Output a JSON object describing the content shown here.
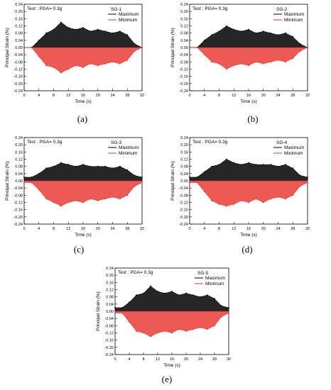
{
  "chart_data": [
    {
      "type": "line",
      "panel_label": "(a)",
      "annotation": "Test : PGA= 0.3g",
      "gauge": "SG-1",
      "xlabel": "Time (s)",
      "ylabel": "Principal Strain (%)",
      "xlim": [
        0,
        32
      ],
      "ylim": [
        -0.24,
        0.24
      ],
      "xticks": [
        "0",
        "4",
        "8",
        "12",
        "16",
        "20",
        "24",
        "28",
        "32"
      ],
      "yticks": [
        "0.24",
        "0.20",
        "0.16",
        "0.12",
        "0.08",
        "0.04",
        "0.00",
        "-0.04",
        "-0.08",
        "-0.12",
        "-0.16",
        "-0.20",
        "-0.24"
      ],
      "legend": [
        "Maximum",
        "Minimum"
      ],
      "series": [
        {
          "name": "Maximum",
          "color": "#000000",
          "x": [
            0,
            2,
            4,
            6,
            8,
            10,
            12,
            14,
            16,
            18,
            20,
            22,
            24,
            26,
            28,
            30,
            32
          ],
          "y": [
            0.0,
            0.0,
            0.04,
            0.08,
            0.1,
            0.14,
            0.11,
            0.1,
            0.11,
            0.09,
            0.1,
            0.09,
            0.08,
            0.09,
            0.07,
            0.02,
            0.0
          ]
        },
        {
          "name": "Minimum",
          "color": "#e8312a",
          "x": [
            0,
            2,
            4,
            6,
            8,
            10,
            12,
            14,
            16,
            18,
            20,
            22,
            24,
            26,
            28,
            30,
            32
          ],
          "y": [
            0.0,
            0.0,
            -0.05,
            -0.1,
            -0.11,
            -0.14,
            -0.12,
            -0.1,
            -0.11,
            -0.09,
            -0.1,
            -0.09,
            -0.08,
            -0.09,
            -0.07,
            -0.02,
            0.0
          ]
        }
      ]
    },
    {
      "type": "line",
      "panel_label": "(b)",
      "annotation": "Test : PGA= 0.3g",
      "gauge": "SG-2",
      "xlabel": "Time (s)",
      "ylabel": "Principal Strain (%)",
      "xlim": [
        0,
        32
      ],
      "ylim": [
        -0.24,
        0.24
      ],
      "xticks": [
        "0",
        "4",
        "8",
        "12",
        "16",
        "20",
        "24",
        "28",
        "32"
      ],
      "yticks": [
        "0.24",
        "0.20",
        "0.16",
        "0.12",
        "0.08",
        "0.04",
        "0.00",
        "-0.04",
        "-0.08",
        "-0.12",
        "-0.16",
        "-0.20",
        "-0.24"
      ],
      "legend": [
        "Maximum",
        "Minimum"
      ],
      "series": [
        {
          "name": "Maximum",
          "color": "#000000",
          "x": [
            0,
            2,
            4,
            6,
            8,
            10,
            12,
            14,
            16,
            18,
            20,
            22,
            24,
            26,
            28,
            30,
            32
          ],
          "y": [
            0.0,
            0.0,
            0.04,
            0.07,
            0.09,
            0.12,
            0.1,
            0.09,
            0.1,
            0.08,
            0.09,
            0.08,
            0.07,
            0.08,
            0.06,
            0.02,
            0.0
          ]
        },
        {
          "name": "Minimum",
          "color": "#e8312a",
          "x": [
            0,
            2,
            4,
            6,
            8,
            10,
            12,
            14,
            16,
            18,
            20,
            22,
            24,
            26,
            28,
            30,
            32
          ],
          "y": [
            0.0,
            0.0,
            -0.04,
            -0.08,
            -0.09,
            -0.12,
            -0.1,
            -0.09,
            -0.1,
            -0.08,
            -0.09,
            -0.08,
            -0.07,
            -0.08,
            -0.06,
            -0.02,
            0.0
          ]
        }
      ]
    },
    {
      "type": "line",
      "panel_label": "(c)",
      "annotation": "Test : PGA= 0.3g",
      "gauge": "SG-3",
      "xlabel": "Time (s)",
      "ylabel": "Principal Strain (%)",
      "xlim": [
        0,
        32
      ],
      "ylim": [
        -0.24,
        0.24
      ],
      "xticks": [
        "0",
        "4",
        "8",
        "12",
        "16",
        "20",
        "24",
        "28",
        "32"
      ],
      "yticks": [
        "0.24",
        "0.20",
        "0.16",
        "0.12",
        "0.08",
        "0.04",
        "0.00",
        "-0.04",
        "-0.08",
        "-0.12",
        "-0.16",
        "-0.20",
        "-0.24"
      ],
      "legend": [
        "Maximum",
        "Minimum"
      ],
      "series": [
        {
          "name": "Maximum",
          "color": "#000000",
          "x": [
            0,
            2,
            4,
            6,
            8,
            10,
            12,
            14,
            16,
            18,
            20,
            22,
            24,
            26,
            28,
            30,
            32
          ],
          "y": [
            0.02,
            0.02,
            0.04,
            0.07,
            0.08,
            0.1,
            0.09,
            0.08,
            0.09,
            0.08,
            0.08,
            0.08,
            0.07,
            0.08,
            0.06,
            0.03,
            0.02
          ]
        },
        {
          "name": "Minimum",
          "color": "#e8312a",
          "x": [
            0,
            2,
            4,
            6,
            8,
            10,
            12,
            14,
            16,
            18,
            20,
            22,
            24,
            26,
            28,
            30,
            32
          ],
          "y": [
            -0.01,
            -0.01,
            -0.05,
            -0.1,
            -0.12,
            -0.14,
            -0.12,
            -0.11,
            -0.12,
            -0.1,
            -0.11,
            -0.1,
            -0.09,
            -0.1,
            -0.08,
            -0.03,
            -0.01
          ]
        }
      ]
    },
    {
      "type": "line",
      "panel_label": "(d)",
      "annotation": "Test : PGA= 0.3g",
      "gauge": "SG-4",
      "xlabel": "Time (s)",
      "ylabel": "Principal Strain (%)",
      "xlim": [
        0,
        32
      ],
      "ylim": [
        -0.24,
        0.24
      ],
      "xticks": [
        "0",
        "4",
        "8",
        "12",
        "16",
        "20",
        "24",
        "28",
        "32"
      ],
      "yticks": [
        "0.24",
        "0.20",
        "0.16",
        "0.12",
        "0.08",
        "0.04",
        "0.00",
        "-0.04",
        "-0.08",
        "-0.12",
        "-0.16",
        "-0.20",
        "-0.24"
      ],
      "legend": [
        "Maximum",
        "Minimum"
      ],
      "series": [
        {
          "name": "Maximum",
          "color": "#000000",
          "x": [
            0,
            2,
            4,
            6,
            8,
            10,
            12,
            14,
            16,
            18,
            20,
            22,
            24,
            26,
            28,
            30,
            32
          ],
          "y": [
            0.02,
            0.02,
            0.05,
            0.08,
            0.09,
            0.12,
            0.1,
            0.09,
            0.1,
            0.09,
            0.09,
            0.09,
            0.08,
            0.09,
            0.07,
            0.03,
            0.02
          ]
        },
        {
          "name": "Minimum",
          "color": "#e8312a",
          "x": [
            0,
            2,
            4,
            6,
            8,
            10,
            12,
            14,
            16,
            18,
            20,
            22,
            24,
            26,
            28,
            30,
            32
          ],
          "y": [
            -0.01,
            -0.01,
            -0.06,
            -0.11,
            -0.13,
            -0.14,
            -0.13,
            -0.11,
            -0.12,
            -0.1,
            -0.12,
            -0.1,
            -0.09,
            -0.1,
            -0.08,
            -0.03,
            -0.01
          ]
        }
      ]
    },
    {
      "type": "line",
      "panel_label": "(e)",
      "annotation": "Test : PGA= 0.3g",
      "gauge": "SG-5",
      "xlabel": "Time (s)",
      "ylabel": "Principal Strain (%)",
      "xlim": [
        0,
        32
      ],
      "ylim": [
        -0.24,
        0.24
      ],
      "xticks": [
        "0",
        "4",
        "8",
        "12",
        "16",
        "20",
        "24",
        "28",
        "32"
      ],
      "yticks": [
        "0.24",
        "0.20",
        "0.16",
        "0.12",
        "0.08",
        "0.04",
        "0.00",
        "-0.04",
        "-0.08",
        "-0.12",
        "-0.16",
        "-0.20",
        "-0.24"
      ],
      "legend": [
        "Maximum",
        "Minimum"
      ],
      "series": [
        {
          "name": "Maximum",
          "color": "#000000",
          "x": [
            0,
            2,
            4,
            6,
            8,
            10,
            12,
            14,
            16,
            18,
            20,
            22,
            24,
            26,
            28,
            30,
            32
          ],
          "y": [
            0.02,
            0.02,
            0.05,
            0.09,
            0.1,
            0.14,
            0.11,
            0.1,
            0.11,
            0.09,
            0.1,
            0.09,
            0.08,
            0.09,
            0.07,
            0.03,
            0.02
          ]
        },
        {
          "name": "Minimum",
          "color": "#e8312a",
          "x": [
            0,
            2,
            4,
            6,
            8,
            10,
            12,
            14,
            16,
            18,
            20,
            22,
            24,
            26,
            28,
            30,
            32
          ],
          "y": [
            -0.01,
            -0.01,
            -0.06,
            -0.11,
            -0.12,
            -0.14,
            -0.12,
            -0.11,
            -0.12,
            -0.1,
            -0.11,
            -0.1,
            -0.09,
            -0.1,
            -0.08,
            -0.03,
            -0.01
          ]
        }
      ]
    }
  ]
}
